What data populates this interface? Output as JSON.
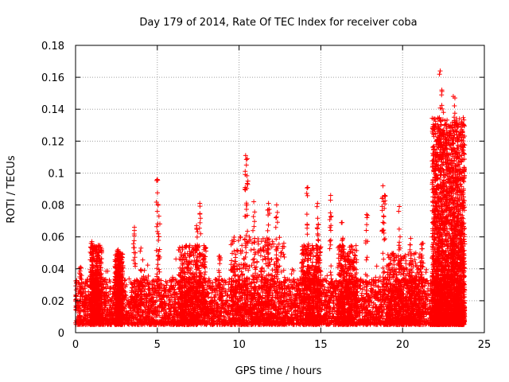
{
  "chart_data": {
    "type": "scatter",
    "title": "Day 179 of 2014, Rate Of TEC Index for receiver coba",
    "xlabel": "GPS time / hours",
    "ylabel": "ROTI / TECUs",
    "xlim": [
      0,
      25
    ],
    "ylim": [
      0,
      0.18
    ],
    "xticks": [
      0,
      5,
      10,
      15,
      20,
      25
    ],
    "xtick_labels": [
      "0",
      "5",
      "10",
      "15",
      "20",
      "25"
    ],
    "yticks": [
      0,
      0.02,
      0.04,
      0.06,
      0.08,
      0.1,
      0.12,
      0.14,
      0.16,
      0.18
    ],
    "ytick_labels": [
      "0",
      "0.02",
      "0.04",
      "0.06",
      "0.08",
      "0.1",
      "0.12",
      "0.14",
      "0.16",
      "0.18"
    ],
    "grid": true,
    "marker": "+",
    "color": "#ff0000",
    "data_range_hours": [
      0,
      23.8
    ],
    "series": [
      {
        "name": "ROTI",
        "typical_band": [
          0.005,
          0.03
        ],
        "notable_points": [
          {
            "x": 0.3,
            "y": 0.041
          },
          {
            "x": 1.0,
            "y": 0.057
          },
          {
            "x": 1.3,
            "y": 0.052
          },
          {
            "x": 2.6,
            "y": 0.052
          },
          {
            "x": 3.6,
            "y": 0.066
          },
          {
            "x": 4.0,
            "y": 0.053
          },
          {
            "x": 5.0,
            "y": 0.096
          },
          {
            "x": 5.1,
            "y": 0.073
          },
          {
            "x": 7.6,
            "y": 0.081
          },
          {
            "x": 7.4,
            "y": 0.067
          },
          {
            "x": 8.8,
            "y": 0.048
          },
          {
            "x": 10.4,
            "y": 0.111
          },
          {
            "x": 10.5,
            "y": 0.109
          },
          {
            "x": 10.9,
            "y": 0.082
          },
          {
            "x": 11.8,
            "y": 0.081
          },
          {
            "x": 12.3,
            "y": 0.08
          },
          {
            "x": 14.2,
            "y": 0.091
          },
          {
            "x": 14.8,
            "y": 0.081
          },
          {
            "x": 15.6,
            "y": 0.086
          },
          {
            "x": 16.3,
            "y": 0.069
          },
          {
            "x": 17.8,
            "y": 0.074
          },
          {
            "x": 18.8,
            "y": 0.092
          },
          {
            "x": 18.9,
            "y": 0.086
          },
          {
            "x": 19.8,
            "y": 0.079
          },
          {
            "x": 20.5,
            "y": 0.059
          },
          {
            "x": 21.2,
            "y": 0.056
          },
          {
            "x": 21.9,
            "y": 0.115
          },
          {
            "x": 22.2,
            "y": 0.128
          },
          {
            "x": 22.3,
            "y": 0.164
          },
          {
            "x": 22.4,
            "y": 0.152
          },
          {
            "x": 22.5,
            "y": 0.138
          },
          {
            "x": 23.0,
            "y": 0.108
          },
          {
            "x": 23.1,
            "y": 0.148
          },
          {
            "x": 23.2,
            "y": 0.147
          },
          {
            "x": 23.3,
            "y": 0.13
          }
        ]
      }
    ]
  }
}
